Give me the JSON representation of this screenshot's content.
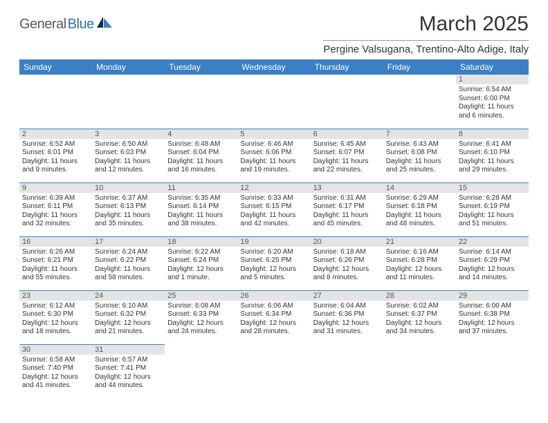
{
  "logo": {
    "part1": "General",
    "part2": "Blue"
  },
  "title": "March 2025",
  "location": "Pergine Valsugana, Trentino-Alto Adige, Italy",
  "colors": {
    "header_bg": "#3b7fc4",
    "header_text": "#ffffff",
    "daynum_bg": "#e4e4e4",
    "cell_border": "#3b7fc4",
    "logo_gray": "#5a5a5a",
    "logo_blue": "#2f6fa8",
    "text": "#333333",
    "page_bg": "#ffffff"
  },
  "typography": {
    "title_size_pt": 22,
    "location_size_pt": 11,
    "weekday_size_pt": 9,
    "daynum_size_pt": 8,
    "cell_text_size_pt": 7.5,
    "logo_size_pt": 15
  },
  "weekdays": [
    "Sunday",
    "Monday",
    "Tuesday",
    "Wednesday",
    "Thursday",
    "Friday",
    "Saturday"
  ],
  "weeks": [
    [
      null,
      null,
      null,
      null,
      null,
      null,
      {
        "n": "1",
        "sr": "Sunrise: 6:54 AM",
        "ss": "Sunset: 6:00 PM",
        "d1": "Daylight: 11 hours",
        "d2": "and 6 minutes."
      }
    ],
    [
      {
        "n": "2",
        "sr": "Sunrise: 6:52 AM",
        "ss": "Sunset: 6:01 PM",
        "d1": "Daylight: 11 hours",
        "d2": "and 9 minutes."
      },
      {
        "n": "3",
        "sr": "Sunrise: 6:50 AM",
        "ss": "Sunset: 6:03 PM",
        "d1": "Daylight: 11 hours",
        "d2": "and 12 minutes."
      },
      {
        "n": "4",
        "sr": "Sunrise: 6:48 AM",
        "ss": "Sunset: 6:04 PM",
        "d1": "Daylight: 11 hours",
        "d2": "and 16 minutes."
      },
      {
        "n": "5",
        "sr": "Sunrise: 6:46 AM",
        "ss": "Sunset: 6:06 PM",
        "d1": "Daylight: 11 hours",
        "d2": "and 19 minutes."
      },
      {
        "n": "6",
        "sr": "Sunrise: 6:45 AM",
        "ss": "Sunset: 6:07 PM",
        "d1": "Daylight: 11 hours",
        "d2": "and 22 minutes."
      },
      {
        "n": "7",
        "sr": "Sunrise: 6:43 AM",
        "ss": "Sunset: 6:08 PM",
        "d1": "Daylight: 11 hours",
        "d2": "and 25 minutes."
      },
      {
        "n": "8",
        "sr": "Sunrise: 6:41 AM",
        "ss": "Sunset: 6:10 PM",
        "d1": "Daylight: 11 hours",
        "d2": "and 29 minutes."
      }
    ],
    [
      {
        "n": "9",
        "sr": "Sunrise: 6:39 AM",
        "ss": "Sunset: 6:11 PM",
        "d1": "Daylight: 11 hours",
        "d2": "and 32 minutes."
      },
      {
        "n": "10",
        "sr": "Sunrise: 6:37 AM",
        "ss": "Sunset: 6:13 PM",
        "d1": "Daylight: 11 hours",
        "d2": "and 35 minutes."
      },
      {
        "n": "11",
        "sr": "Sunrise: 6:35 AM",
        "ss": "Sunset: 6:14 PM",
        "d1": "Daylight: 11 hours",
        "d2": "and 38 minutes."
      },
      {
        "n": "12",
        "sr": "Sunrise: 6:33 AM",
        "ss": "Sunset: 6:15 PM",
        "d1": "Daylight: 11 hours",
        "d2": "and 42 minutes."
      },
      {
        "n": "13",
        "sr": "Sunrise: 6:31 AM",
        "ss": "Sunset: 6:17 PM",
        "d1": "Daylight: 11 hours",
        "d2": "and 45 minutes."
      },
      {
        "n": "14",
        "sr": "Sunrise: 6:29 AM",
        "ss": "Sunset: 6:18 PM",
        "d1": "Daylight: 11 hours",
        "d2": "and 48 minutes."
      },
      {
        "n": "15",
        "sr": "Sunrise: 6:28 AM",
        "ss": "Sunset: 6:19 PM",
        "d1": "Daylight: 11 hours",
        "d2": "and 51 minutes."
      }
    ],
    [
      {
        "n": "16",
        "sr": "Sunrise: 6:26 AM",
        "ss": "Sunset: 6:21 PM",
        "d1": "Daylight: 11 hours",
        "d2": "and 55 minutes."
      },
      {
        "n": "17",
        "sr": "Sunrise: 6:24 AM",
        "ss": "Sunset: 6:22 PM",
        "d1": "Daylight: 11 hours",
        "d2": "and 58 minutes."
      },
      {
        "n": "18",
        "sr": "Sunrise: 6:22 AM",
        "ss": "Sunset: 6:24 PM",
        "d1": "Daylight: 12 hours",
        "d2": "and 1 minute."
      },
      {
        "n": "19",
        "sr": "Sunrise: 6:20 AM",
        "ss": "Sunset: 6:25 PM",
        "d1": "Daylight: 12 hours",
        "d2": "and 5 minutes."
      },
      {
        "n": "20",
        "sr": "Sunrise: 6:18 AM",
        "ss": "Sunset: 6:26 PM",
        "d1": "Daylight: 12 hours",
        "d2": "and 8 minutes."
      },
      {
        "n": "21",
        "sr": "Sunrise: 6:16 AM",
        "ss": "Sunset: 6:28 PM",
        "d1": "Daylight: 12 hours",
        "d2": "and 11 minutes."
      },
      {
        "n": "22",
        "sr": "Sunrise: 6:14 AM",
        "ss": "Sunset: 6:29 PM",
        "d1": "Daylight: 12 hours",
        "d2": "and 14 minutes."
      }
    ],
    [
      {
        "n": "23",
        "sr": "Sunrise: 6:12 AM",
        "ss": "Sunset: 6:30 PM",
        "d1": "Daylight: 12 hours",
        "d2": "and 18 minutes."
      },
      {
        "n": "24",
        "sr": "Sunrise: 6:10 AM",
        "ss": "Sunset: 6:32 PM",
        "d1": "Daylight: 12 hours",
        "d2": "and 21 minutes."
      },
      {
        "n": "25",
        "sr": "Sunrise: 6:08 AM",
        "ss": "Sunset: 6:33 PM",
        "d1": "Daylight: 12 hours",
        "d2": "and 24 minutes."
      },
      {
        "n": "26",
        "sr": "Sunrise: 6:06 AM",
        "ss": "Sunset: 6:34 PM",
        "d1": "Daylight: 12 hours",
        "d2": "and 28 minutes."
      },
      {
        "n": "27",
        "sr": "Sunrise: 6:04 AM",
        "ss": "Sunset: 6:36 PM",
        "d1": "Daylight: 12 hours",
        "d2": "and 31 minutes."
      },
      {
        "n": "28",
        "sr": "Sunrise: 6:02 AM",
        "ss": "Sunset: 6:37 PM",
        "d1": "Daylight: 12 hours",
        "d2": "and 34 minutes."
      },
      {
        "n": "29",
        "sr": "Sunrise: 6:00 AM",
        "ss": "Sunset: 6:38 PM",
        "d1": "Daylight: 12 hours",
        "d2": "and 37 minutes."
      }
    ],
    [
      {
        "n": "30",
        "sr": "Sunrise: 6:58 AM",
        "ss": "Sunset: 7:40 PM",
        "d1": "Daylight: 12 hours",
        "d2": "and 41 minutes."
      },
      {
        "n": "31",
        "sr": "Sunrise: 6:57 AM",
        "ss": "Sunset: 7:41 PM",
        "d1": "Daylight: 12 hours",
        "d2": "and 44 minutes."
      },
      null,
      null,
      null,
      null,
      null
    ]
  ]
}
